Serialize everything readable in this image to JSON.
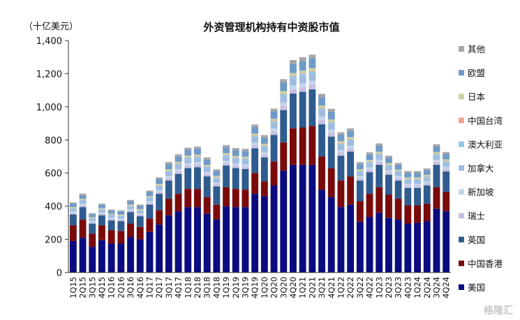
{
  "watermark": "格隆汇",
  "chart_data": {
    "type": "bar",
    "stacked": true,
    "title": "外资管理机构持有中资股市值",
    "unit_label": "（十亿美元）",
    "ylim": [
      0,
      1400
    ],
    "yticks": [
      0,
      200,
      400,
      600,
      800,
      1000,
      1200,
      1400
    ],
    "ytick_labels": [
      "0",
      "200",
      "400",
      "600",
      "800",
      "1,000",
      "1,200",
      "1,400"
    ],
    "grid": false,
    "legend_position": "right",
    "categories": [
      "1Q15",
      "2Q15",
      "3Q15",
      "4Q15",
      "1Q16",
      "2Q16",
      "3Q16",
      "4Q16",
      "1Q17",
      "2Q17",
      "3Q17",
      "4Q17",
      "1Q18",
      "2Q18",
      "3Q18",
      "4Q18",
      "1Q19",
      "2Q19",
      "3Q19",
      "4Q19",
      "1Q20",
      "2Q20",
      "3Q20",
      "4Q20",
      "1Q21",
      "2Q21",
      "3Q21",
      "4Q21",
      "1Q22",
      "2Q22",
      "3Q22",
      "4Q22",
      "1Q23",
      "2Q23",
      "3Q23",
      "4Q23",
      "1Q24",
      "2Q24",
      "3Q24",
      "4Q24"
    ],
    "xtick_labels": [
      "1Q15",
      "",
      "3Q15",
      "",
      "1Q16",
      "",
      "3Q16",
      "",
      "1Q17",
      "",
      "3Q17",
      "",
      "1Q18",
      "",
      "3Q18",
      "",
      "1Q19",
      "",
      "3Q19",
      "",
      "1Q20",
      "",
      "3Q20",
      "",
      "1Q21",
      "",
      "3Q21",
      "",
      "1Q22",
      "",
      "3Q22",
      "",
      "1Q23",
      "",
      "3Q23",
      "",
      "1Q24",
      "",
      "3Q24",
      ""
    ],
    "xtick_labels_full": [
      "1Q15",
      "2Q15",
      "3Q15",
      "4Q15",
      "1Q16",
      "2Q16",
      "3Q16",
      "4Q16",
      "1Q17",
      "2Q17",
      "3Q17",
      "4Q17",
      "1Q18",
      "2Q18",
      "3Q18",
      "4Q18",
      "1Q19",
      "2Q19",
      "3Q19",
      "4Q19",
      "1Q20",
      "2Q20",
      "3Q20",
      "4Q20",
      "1Q21",
      "2Q21",
      "3Q21",
      "4Q21",
      "1Q22",
      "2Q22",
      "3Q22",
      "4Q22",
      "1Q23",
      "2Q23",
      "3Q23",
      "4Q23",
      "1Q24",
      "2Q24",
      "3Q24",
      "4Q24"
    ],
    "series": [
      {
        "name": "美国",
        "color": "#0b0b80",
        "values": [
          190,
          210,
          155,
          195,
          175,
          175,
          215,
          200,
          245,
          290,
          345,
          370,
          395,
          395,
          355,
          320,
          400,
          395,
          395,
          475,
          460,
          525,
          615,
          650,
          650,
          650,
          500,
          455,
          395,
          410,
          305,
          335,
          360,
          330,
          320,
          295,
          300,
          310,
          385,
          370
        ]
      },
      {
        "name": "中国香港",
        "color": "#7a0a0a",
        "values": [
          95,
          110,
          80,
          90,
          80,
          75,
          80,
          75,
          80,
          85,
          100,
          105,
          110,
          110,
          100,
          90,
          115,
          110,
          105,
          125,
          90,
          145,
          170,
          220,
          225,
          235,
          200,
          175,
          160,
          170,
          125,
          140,
          155,
          140,
          125,
          110,
          105,
          105,
          130,
          115
        ]
      },
      {
        "name": "英国",
        "color": "#2f5b8f",
        "values": [
          65,
          75,
          60,
          60,
          60,
          60,
          70,
          65,
          85,
          100,
          110,
          120,
          125,
          130,
          125,
          110,
          130,
          125,
          125,
          150,
          145,
          160,
          195,
          210,
          215,
          220,
          195,
          190,
          150,
          150,
          125,
          130,
          135,
          120,
          110,
          105,
          105,
          110,
          135,
          125
        ]
      },
      {
        "name": "瑞士",
        "color": "#c8bfe0",
        "values": [
          10,
          11,
          8,
          9,
          8,
          8,
          9,
          9,
          10,
          12,
          14,
          15,
          16,
          16,
          15,
          13,
          16,
          15,
          15,
          18,
          17,
          21,
          24,
          26,
          27,
          27,
          24,
          22,
          18,
          18,
          14,
          15,
          16,
          15,
          14,
          13,
          13,
          13,
          16,
          15
        ]
      },
      {
        "name": "新加坡",
        "color": "#c5d6ea",
        "values": [
          8,
          9,
          7,
          8,
          7,
          7,
          8,
          7,
          9,
          11,
          12,
          13,
          13,
          14,
          12,
          11,
          13,
          13,
          13,
          16,
          15,
          18,
          22,
          24,
          25,
          25,
          22,
          20,
          17,
          17,
          13,
          14,
          15,
          13,
          12,
          12,
          12,
          12,
          14,
          14
        ]
      },
      {
        "name": "加拿大",
        "color": "#9fbce0",
        "values": [
          15,
          17,
          13,
          15,
          14,
          14,
          16,
          15,
          18,
          21,
          24,
          26,
          27,
          27,
          25,
          22,
          27,
          26,
          26,
          30,
          28,
          33,
          39,
          42,
          44,
          44,
          38,
          35,
          29,
          28,
          23,
          25,
          27,
          24,
          22,
          21,
          21,
          21,
          26,
          24
        ]
      },
      {
        "name": "澳大利亚",
        "color": "#8fc7e6",
        "values": [
          4,
          5,
          4,
          4,
          4,
          4,
          4,
          4,
          5,
          5,
          6,
          6,
          7,
          7,
          6,
          6,
          7,
          7,
          7,
          8,
          7,
          9,
          10,
          11,
          11,
          11,
          10,
          9,
          8,
          8,
          6,
          7,
          7,
          6,
          6,
          6,
          6,
          6,
          7,
          7
        ]
      },
      {
        "name": "中国台湾",
        "color": "#f0a394",
        "values": [
          2,
          2,
          2,
          2,
          2,
          2,
          2,
          2,
          2,
          3,
          3,
          3,
          3,
          3,
          3,
          3,
          3,
          3,
          3,
          4,
          4,
          4,
          5,
          5,
          5,
          5,
          4,
          4,
          4,
          4,
          3,
          3,
          3,
          3,
          3,
          3,
          3,
          3,
          3,
          3
        ]
      },
      {
        "name": "日本",
        "color": "#c6d2a8",
        "values": [
          6,
          6,
          5,
          6,
          5,
          5,
          6,
          6,
          7,
          8,
          9,
          10,
          10,
          10,
          9,
          8,
          10,
          10,
          10,
          12,
          11,
          13,
          15,
          16,
          17,
          17,
          15,
          14,
          12,
          12,
          10,
          10,
          11,
          10,
          9,
          9,
          9,
          9,
          11,
          10
        ]
      },
      {
        "name": "欧盟",
        "color": "#6f9ac8",
        "values": [
          20,
          22,
          17,
          19,
          18,
          18,
          20,
          19,
          24,
          28,
          31,
          33,
          34,
          35,
          32,
          29,
          35,
          34,
          34,
          40,
          38,
          44,
          52,
          56,
          58,
          58,
          50,
          46,
          38,
          38,
          30,
          33,
          36,
          32,
          29,
          27,
          27,
          28,
          34,
          32
        ]
      },
      {
        "name": "其他",
        "color": "#a6a6a6",
        "values": [
          8,
          9,
          7,
          8,
          7,
          7,
          8,
          8,
          10,
          11,
          12,
          13,
          13,
          13,
          12,
          11,
          13,
          13,
          13,
          15,
          14,
          17,
          20,
          22,
          23,
          23,
          20,
          18,
          15,
          15,
          12,
          13,
          14,
          12,
          11,
          11,
          11,
          11,
          13,
          12
        ]
      }
    ]
  }
}
